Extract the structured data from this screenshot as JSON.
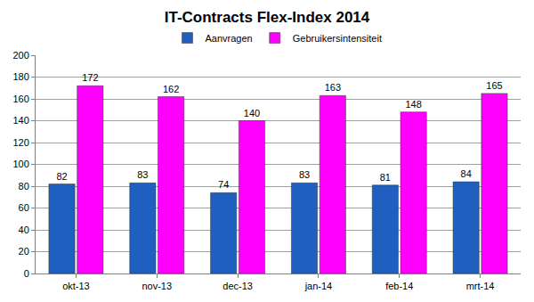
{
  "chart_data": {
    "type": "bar",
    "title": "IT-Contracts Flex-Index 2014",
    "categories": [
      "okt-13",
      "nov-13",
      "dec-13",
      "jan-14",
      "feb-14",
      "mrt-14"
    ],
    "series": [
      {
        "name": "Aanvragen",
        "color": "#1f5fc0",
        "values": [
          82,
          83,
          74,
          83,
          81,
          84
        ]
      },
      {
        "name": "Gebruikersintensiteit",
        "color": "#ff00ff",
        "values": [
          172,
          162,
          140,
          163,
          148,
          165
        ]
      }
    ],
    "ylim": [
      0,
      200
    ],
    "yticks": [
      0,
      20,
      40,
      60,
      80,
      100,
      120,
      140,
      160,
      180,
      200
    ],
    "grid": true,
    "legend": "top",
    "data_labels": true
  }
}
